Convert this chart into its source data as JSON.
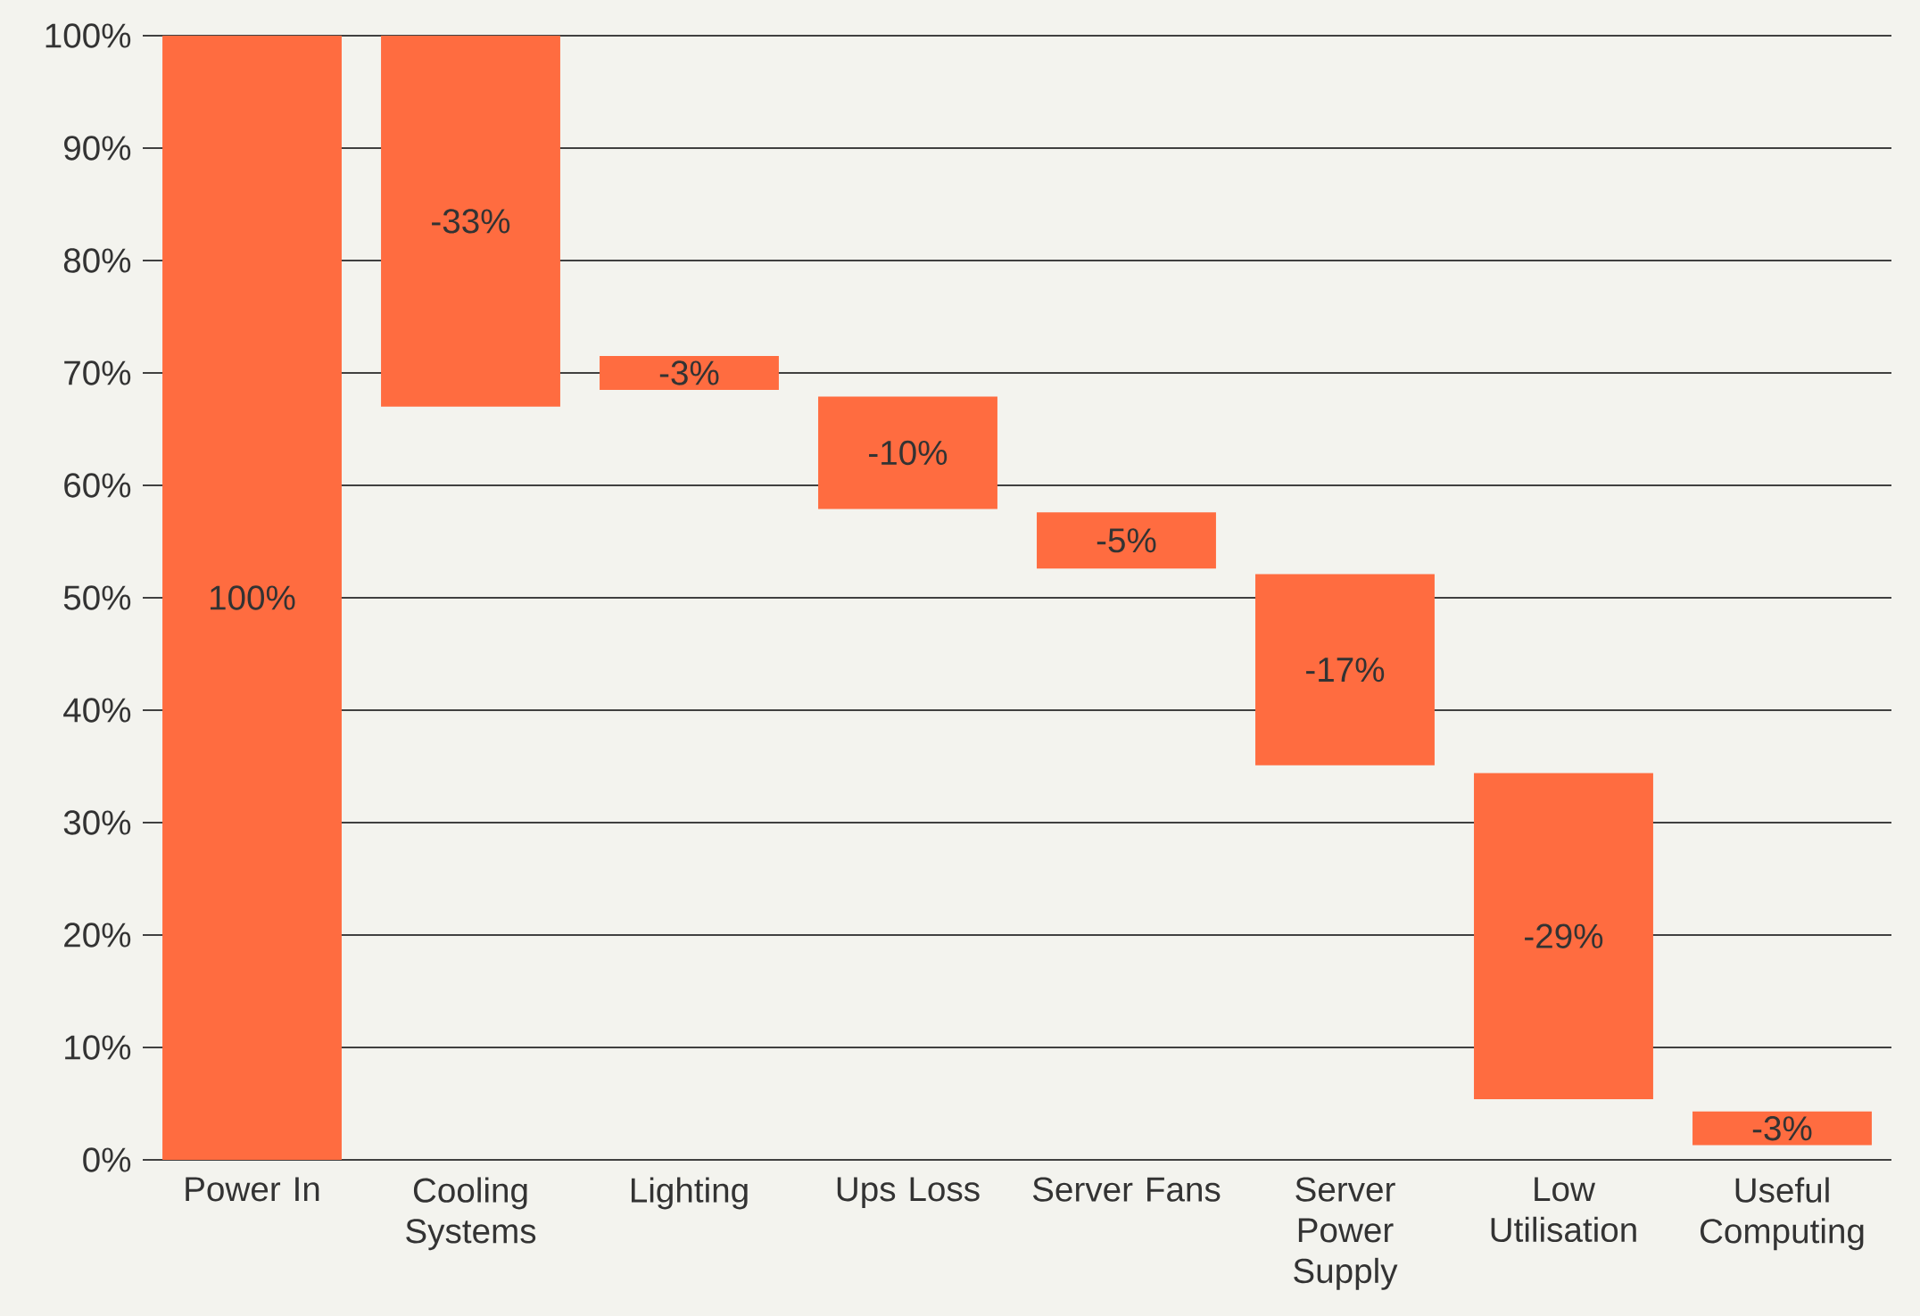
{
  "chart_data": {
    "type": "bar",
    "categories": [
      "Power In",
      "Cooling Systems",
      "Lighting",
      "Ups Loss",
      "Server Fans",
      "Server Power Supply",
      "Low Utilisation",
      "Useful Computing"
    ],
    "base": [
      0,
      100,
      71.5,
      67.9,
      57.6,
      52.1,
      34.4,
      4.3
    ],
    "values": [
      100,
      -33,
      -3,
      -10,
      -5,
      -17,
      -29,
      -3
    ],
    "value_labels": [
      "100%",
      "-33%",
      "-3%",
      "-10%",
      "-5%",
      "-17%",
      "-29%",
      "-3%"
    ],
    "color": "#ff6c40",
    "ylim": [
      0,
      100
    ],
    "yticks": [
      {
        "value": 0,
        "label": "0%"
      },
      {
        "value": 10,
        "label": "10%"
      },
      {
        "value": 20,
        "label": "20%"
      },
      {
        "value": 30,
        "label": "30%"
      },
      {
        "value": 40,
        "label": "40%"
      },
      {
        "value": 50,
        "label": "50%"
      },
      {
        "value": 60,
        "label": "60%"
      },
      {
        "value": 70,
        "label": "70%"
      },
      {
        "value": 80,
        "label": "80%"
      },
      {
        "value": 90,
        "label": "90%"
      },
      {
        "value": 100,
        "label": "100%"
      }
    ],
    "grid": "y"
  }
}
